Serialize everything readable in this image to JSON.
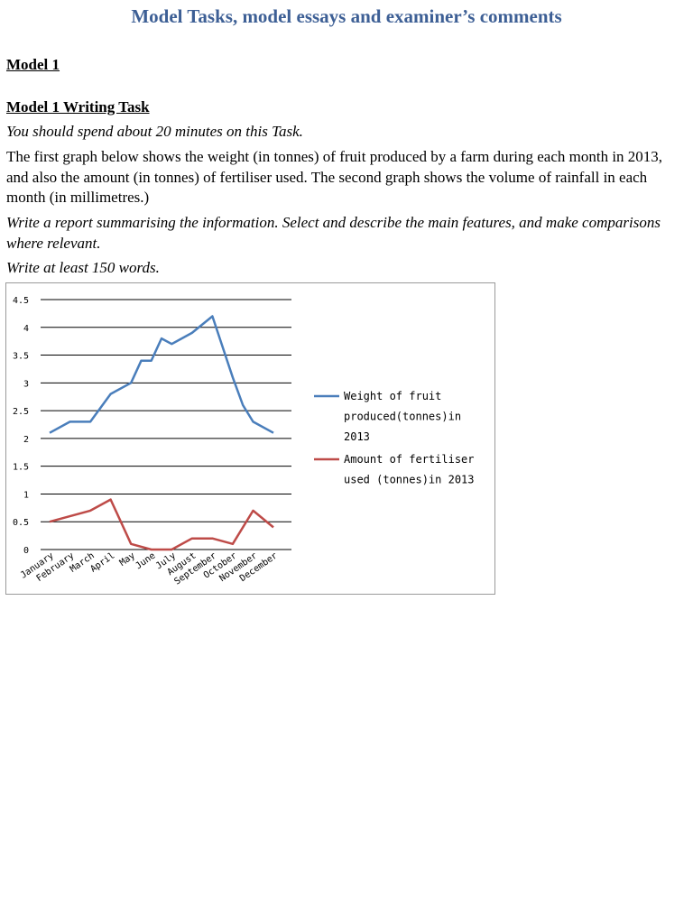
{
  "header": {
    "title": "Model Tasks, model essays and examiner’s comments"
  },
  "section": {
    "heading": "Model 1",
    "task_heading": "Model 1 Writing Task"
  },
  "task": {
    "time_note": "You should spend about 20 minutes on this Task.",
    "description": "The first graph below shows the weight (in tonnes) of fruit produced by a farm during each month in 2013, and also the amount (in tonnes) of fertiliser used. The second graph shows the volume of rainfall in each month (in millimetres.)",
    "instruction": "Write a report summarising the information. Select and describe the main features, and make comparisons where relevant.",
    "word_count": "Write at least 150 words."
  },
  "chart_data": {
    "type": "line",
    "categories": [
      "January",
      "February",
      "March",
      "April",
      "May",
      "June",
      "July",
      "August",
      "September",
      "October",
      "November",
      "December"
    ],
    "ylim": [
      0,
      4.5
    ],
    "yticks": [
      "0",
      "0.5",
      "1",
      "1.5",
      "2",
      "2.5",
      "3",
      "3.5",
      "4",
      "4.5"
    ],
    "grid": true,
    "legend_position": "right",
    "series": [
      {
        "name_lines": [
          "Weight of fruit",
          "produced(tonnes)in",
          "2013"
        ],
        "color": "#4a7ebb",
        "values": [
          2.1,
          2.3,
          2.3,
          2.8,
          3.0,
          3.4,
          3.7,
          3.9,
          4.2,
          3.1,
          2.3,
          2.1
        ],
        "extra_points": [
          [
            4.5,
            3.4
          ],
          [
            5.5,
            3.8
          ],
          [
            9.5,
            2.6
          ]
        ]
      },
      {
        "name_lines": [
          "Amount of fertiliser",
          "used (tonnes)in 2013"
        ],
        "color": "#be4b48",
        "values": [
          0.5,
          0.6,
          0.7,
          0.9,
          0.1,
          0.0,
          0.0,
          0.2,
          0.2,
          0.1,
          0.7,
          0.4
        ],
        "extra_points": []
      }
    ]
  }
}
